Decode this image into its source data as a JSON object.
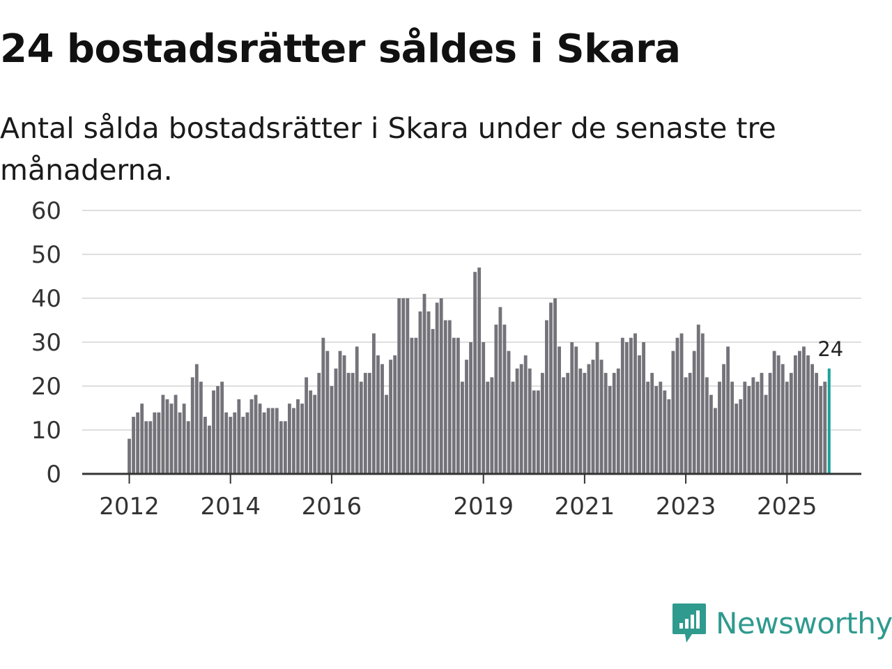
{
  "page": {
    "title": "24 bostadsrätter såldes i Skara",
    "subtitle": "Antal sålda bostadsrätter i Skara under de senaste tre månaderna.",
    "logo_text": "Newsworthy"
  },
  "colors": {
    "bar": "#74737a",
    "highlight": "#1aa39a",
    "grid": "#dedede",
    "axis": "#333333",
    "brand": "#2f9a8e"
  },
  "chart_data": {
    "type": "bar",
    "title": "24 bostadsrätter såldes i Skara",
    "subtitle": "Antal sålda bostadsrätter i Skara under de senaste tre månaderna.",
    "xlabel": "",
    "ylabel": "",
    "ylim": [
      0,
      60
    ],
    "yticks": [
      0,
      10,
      20,
      30,
      40,
      50,
      60
    ],
    "grid": true,
    "x_range_years": [
      2011.07,
      2026.47
    ],
    "start": "2012-01",
    "frequency": "monthly",
    "xtick_labels": [
      "2012",
      "2014",
      "2016",
      "2019",
      "2021",
      "2023",
      "2025"
    ],
    "highlight_last": true,
    "last_value_label": "24",
    "values": [
      8,
      13,
      14,
      16,
      12,
      12,
      14,
      14,
      18,
      17,
      16,
      18,
      14,
      16,
      12,
      22,
      25,
      21,
      13,
      11,
      19,
      20,
      21,
      14,
      13,
      14,
      17,
      13,
      14,
      17,
      18,
      16,
      14,
      15,
      15,
      15,
      12,
      12,
      16,
      15,
      17,
      16,
      22,
      19,
      18,
      23,
      31,
      28,
      20,
      24,
      28,
      27,
      23,
      23,
      29,
      21,
      23,
      23,
      32,
      27,
      25,
      18,
      26,
      27,
      40,
      40,
      40,
      31,
      31,
      37,
      41,
      37,
      33,
      39,
      40,
      35,
      35,
      31,
      31,
      21,
      26,
      30,
      46,
      47,
      30,
      21,
      22,
      34,
      38,
      34,
      28,
      21,
      24,
      25,
      27,
      24,
      19,
      19,
      23,
      35,
      39,
      40,
      29,
      22,
      23,
      30,
      29,
      24,
      23,
      25,
      26,
      30,
      26,
      23,
      20,
      23,
      24,
      31,
      30,
      31,
      32,
      27,
      30,
      21,
      23,
      20,
      21,
      19,
      17,
      28,
      31,
      32,
      22,
      23,
      28,
      34,
      32,
      22,
      18,
      15,
      21,
      25,
      29,
      21,
      16,
      17,
      21,
      20,
      22,
      21,
      23,
      18,
      23,
      28,
      27,
      25,
      21,
      23,
      27,
      28,
      29,
      27,
      25,
      23,
      20,
      21,
      24
    ]
  }
}
